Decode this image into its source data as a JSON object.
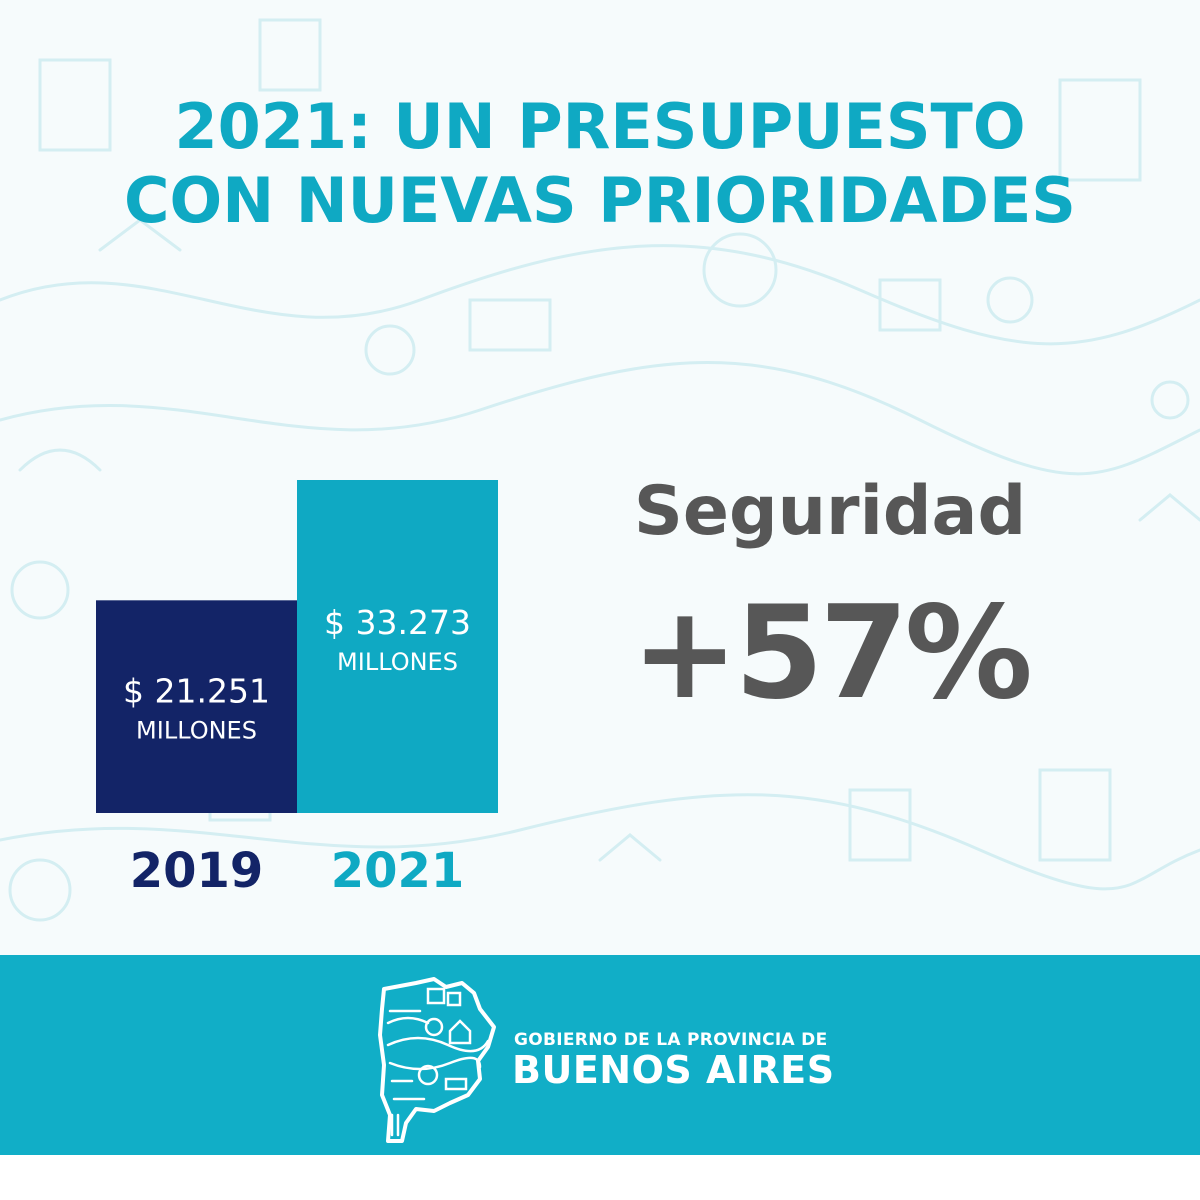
{
  "colors": {
    "teal": "#0fa9c3",
    "navy": "#132467",
    "grey": "#575757",
    "footer": "#11aec7",
    "background": "#f6fbfc",
    "pattern": "#d4eef2"
  },
  "header": {
    "title_line1": "2021: UN PRESUPUESTO",
    "title_line2": "CON NUEVAS PRIORIDADES"
  },
  "chart_data": {
    "type": "bar",
    "categories": [
      "2019",
      "2021"
    ],
    "values": [
      21251,
      33273
    ],
    "unit": "MILLONES",
    "value_labels": [
      "$ 21.251",
      "$ 33.273"
    ],
    "bar_colors": [
      "#132467",
      "#0fa9c3"
    ],
    "category_colors": [
      "#132467",
      "#0fa9c3"
    ],
    "ylim": [
      0,
      33273
    ]
  },
  "highlight": {
    "label": "Seguridad",
    "value": "+57%"
  },
  "footer": {
    "line1": "GOBIERNO DE LA PROVINCIA DE",
    "line2": "BUENOS AIRES",
    "logo_icon": "buenos-aires-province-map-logo"
  }
}
